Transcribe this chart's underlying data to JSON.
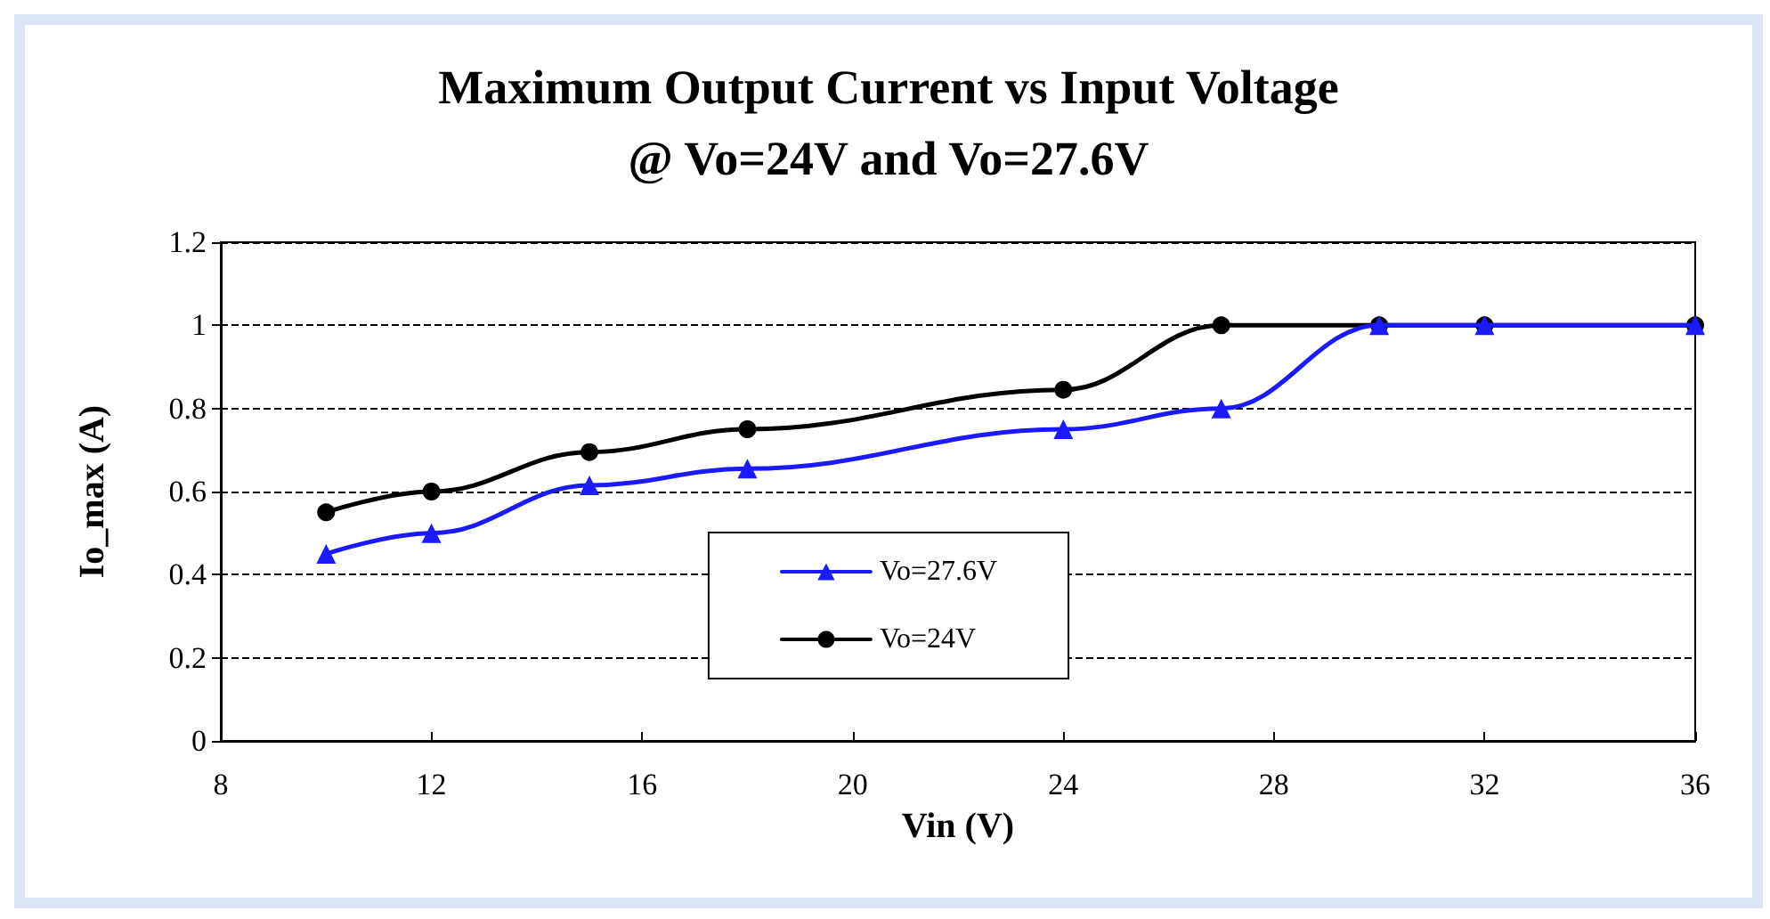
{
  "chart_data": {
    "type": "line",
    "title": "Maximum Output Current vs Input Voltage\n@ Vo=24V and Vo=27.6V",
    "xlabel": "Vin (V)",
    "ylabel": "Io_max (A)",
    "x": [
      10,
      12,
      15,
      18,
      24,
      27,
      30,
      32,
      36
    ],
    "series": [
      {
        "name": "Vo=27.6V",
        "color": "#1a1aff",
        "marker": "triangle",
        "values": [
          0.45,
          0.5,
          0.615,
          0.655,
          0.75,
          0.8,
          1,
          1,
          1
        ]
      },
      {
        "name": "Vo=24V",
        "color": "#000000",
        "marker": "circle",
        "values": [
          0.55,
          0.6,
          0.695,
          0.75,
          0.845,
          1,
          1,
          1,
          1
        ]
      }
    ],
    "xlim": [
      8,
      36
    ],
    "xticks": [
      8,
      12,
      16,
      20,
      24,
      28,
      32,
      36
    ],
    "ylim": [
      0,
      1.2
    ],
    "yticks": [
      0,
      0.2,
      0.4,
      0.6,
      0.8,
      1,
      1.2
    ],
    "grid": "y",
    "legend": "center",
    "line_style": "solid"
  }
}
